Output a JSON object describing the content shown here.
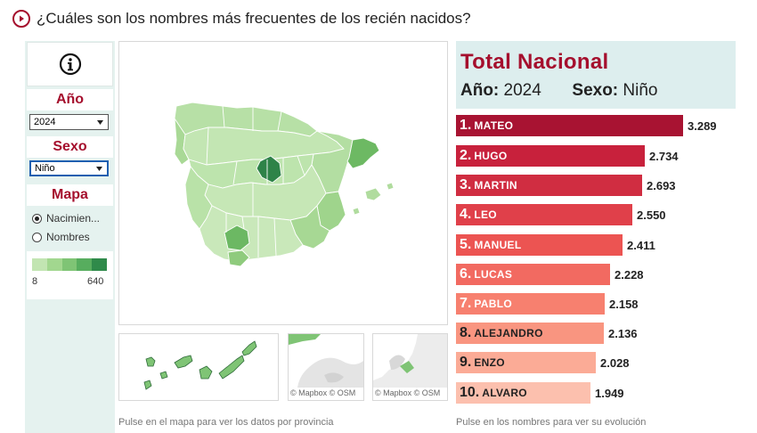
{
  "header": {
    "title": "¿Cuáles son los nombres más frecuentes de los recién nacidos?"
  },
  "left_panel": {
    "info_icon": "info-icon",
    "year_label": "Año",
    "year_value": "2024",
    "sex_label": "Sexo",
    "sex_value": "Niño",
    "map_label": "Mapa",
    "map_options": [
      "Nacimien...",
      "Nombres"
    ],
    "legend_min": "8",
    "legend_max": "640",
    "legend_colors": [
      "#c2e5b2",
      "#a2d78f",
      "#7fc475",
      "#57ad5e",
      "#2f8a4a"
    ]
  },
  "map": {
    "attribution_canary": "",
    "attribution_ceuta": "© Mapbox © OSM",
    "attribution_melilla": "© Mapbox © OSM",
    "footnote": "Pulse en el mapa para ver los datos por provincia"
  },
  "summary": {
    "title": "Total Nacional",
    "year_label": "Año:",
    "year_value": "2024",
    "sex_label": "Sexo:",
    "sex_value": "Niño"
  },
  "names": [
    {
      "rank": "1.",
      "name": "MATEO",
      "value": "3.289",
      "count": 3289,
      "color": "#a81332"
    },
    {
      "rank": "2.",
      "name": "HUGO",
      "value": "2.734",
      "count": 2734,
      "color": "#c8213c"
    },
    {
      "rank": "3.",
      "name": "MARTIN",
      "value": "2.693",
      "count": 2693,
      "color": "#d02d41"
    },
    {
      "rank": "4.",
      "name": "LEO",
      "value": "2.550",
      "count": 2550,
      "color": "#e0404a"
    },
    {
      "rank": "5.",
      "name": "MANUEL",
      "value": "2.411",
      "count": 2411,
      "color": "#ec5452"
    },
    {
      "rank": "6.",
      "name": "LUCAS",
      "value": "2.228",
      "count": 2228,
      "color": "#f26a61"
    },
    {
      "rank": "7.",
      "name": "PABLO",
      "value": "2.158",
      "count": 2158,
      "color": "#f7806f"
    },
    {
      "rank": "8.",
      "name": "ALEJANDRO",
      "value": "2.136",
      "count": 2136,
      "color": "#f99580"
    },
    {
      "rank": "9.",
      "name": "ENZO",
      "value": "2.028",
      "count": 2028,
      "color": "#fbab96"
    },
    {
      "rank": "10.",
      "name": "ALVARO",
      "value": "1.949",
      "count": 1949,
      "color": "#fcc0ae"
    }
  ],
  "names_footnote": "Pulse en los nombres para ver su evolución"
}
